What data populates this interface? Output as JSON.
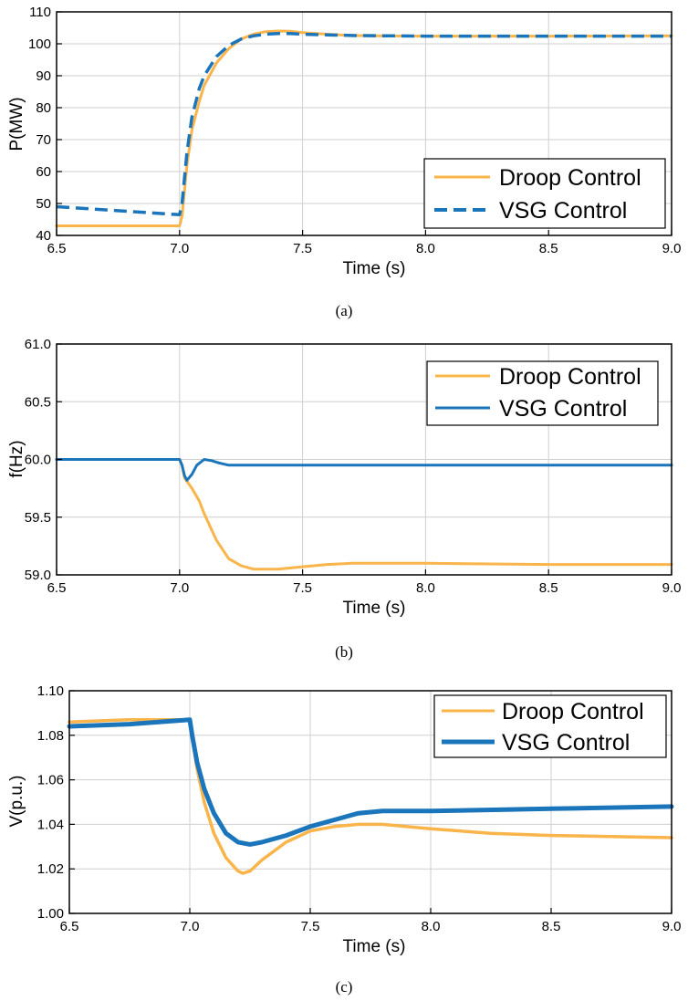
{
  "chart_data": [
    {
      "type": "line",
      "caption": "(a)",
      "xlabel": "Time (s)",
      "ylabel": "P(MW)",
      "xlim": [
        6.5,
        9.0
      ],
      "ylim": [
        40,
        110
      ],
      "xticks": [
        "6.5",
        "7.0",
        "7.5",
        "8.0",
        "8.5",
        "9.0"
      ],
      "yticks": [
        "40",
        "50",
        "60",
        "70",
        "80",
        "90",
        "100",
        "110"
      ],
      "grid": true,
      "legend_position": "bottom-right",
      "series": [
        {
          "name": "Droop Control",
          "color": "#F9B44A",
          "style": "solid",
          "x": [
            6.5,
            7.0,
            7.01,
            7.03,
            7.05,
            7.08,
            7.1,
            7.15,
            7.2,
            7.25,
            7.3,
            7.35,
            7.4,
            7.45,
            7.5,
            7.6,
            7.7,
            7.8,
            8.0,
            8.5,
            9.0
          ],
          "y": [
            43,
            43,
            46,
            62,
            73,
            82,
            87,
            94,
            98.5,
            101.5,
            103,
            103.8,
            104,
            103.9,
            103.5,
            103,
            102.6,
            102.5,
            102.4,
            102.4,
            102.5
          ]
        },
        {
          "name": "VSG Control",
          "color": "#1B75BB",
          "style": "dashed",
          "x": [
            6.5,
            7.0,
            7.01,
            7.03,
            7.05,
            7.08,
            7.1,
            7.15,
            7.2,
            7.25,
            7.3,
            7.35,
            7.4,
            7.45,
            7.5,
            7.6,
            7.7,
            8.0,
            8.5,
            9.0
          ],
          "y": [
            49,
            46.5,
            50,
            66,
            77,
            86,
            90,
            96,
            99.5,
            101.5,
            102.5,
            103,
            103.2,
            103.2,
            103,
            102.8,
            102.6,
            102.4,
            102.4,
            102.4
          ]
        }
      ]
    },
    {
      "type": "line",
      "caption": "(b)",
      "xlabel": "Time (s)",
      "ylabel": "f(Hz)",
      "xlim": [
        6.5,
        9.0
      ],
      "ylim": [
        59.0,
        61.0
      ],
      "xticks": [
        "6.5",
        "7.0",
        "7.5",
        "8.0",
        "8.5",
        "9.0"
      ],
      "yticks": [
        "59.0",
        "59.5",
        "60.0",
        "60.5",
        "61.0"
      ],
      "grid": true,
      "legend_position": "top-right",
      "series": [
        {
          "name": "Droop Control",
          "color": "#F9B44A",
          "style": "solid",
          "x": [
            6.5,
            7.0,
            7.01,
            7.02,
            7.05,
            7.08,
            7.1,
            7.15,
            7.2,
            7.25,
            7.3,
            7.35,
            7.4,
            7.5,
            7.6,
            7.7,
            7.8,
            8.0,
            8.5,
            9.0
          ],
          "y": [
            60.0,
            60.0,
            59.95,
            59.84,
            59.75,
            59.64,
            59.53,
            59.3,
            59.14,
            59.08,
            59.05,
            59.05,
            59.05,
            59.07,
            59.09,
            59.1,
            59.1,
            59.1,
            59.09,
            59.09
          ]
        },
        {
          "name": "VSG Control",
          "color": "#1B75BB",
          "style": "solid",
          "x": [
            6.5,
            7.0,
            7.01,
            7.02,
            7.03,
            7.05,
            7.07,
            7.1,
            7.13,
            7.16,
            7.2,
            7.25,
            7.3,
            7.5,
            8.0,
            8.5,
            9.0
          ],
          "y": [
            60.0,
            60.0,
            59.95,
            59.86,
            59.82,
            59.87,
            59.95,
            60.0,
            59.99,
            59.97,
            59.95,
            59.95,
            59.95,
            59.95,
            59.95,
            59.95,
            59.95
          ]
        }
      ]
    },
    {
      "type": "line",
      "caption": "(c)",
      "xlabel": "Time (s)",
      "ylabel": "V(p.u.)",
      "xlim": [
        6.5,
        9.0
      ],
      "ylim": [
        1.0,
        1.1
      ],
      "xticks": [
        "6.5",
        "7.0",
        "7.5",
        "8.0",
        "8.5",
        "9.0"
      ],
      "yticks": [
        "1.00",
        "1.02",
        "1.04",
        "1.06",
        "1.08",
        "1.10"
      ],
      "grid": true,
      "legend_position": "top-right",
      "series": [
        {
          "name": "Droop Control",
          "color": "#F9B44A",
          "style": "solid",
          "x": [
            6.5,
            6.75,
            7.0,
            7.01,
            7.03,
            7.06,
            7.1,
            7.15,
            7.2,
            7.22,
            7.25,
            7.3,
            7.4,
            7.5,
            7.6,
            7.7,
            7.75,
            7.8,
            8.0,
            8.25,
            8.5,
            9.0
          ],
          "y": [
            1.086,
            1.087,
            1.087,
            1.08,
            1.065,
            1.05,
            1.036,
            1.025,
            1.019,
            1.018,
            1.019,
            1.024,
            1.032,
            1.037,
            1.039,
            1.04,
            1.04,
            1.04,
            1.038,
            1.036,
            1.035,
            1.034
          ]
        },
        {
          "name": "VSG Control",
          "color": "#1B75BB",
          "style": "solid",
          "x": [
            6.5,
            6.75,
            7.0,
            7.01,
            7.03,
            7.06,
            7.1,
            7.15,
            7.2,
            7.25,
            7.3,
            7.4,
            7.5,
            7.6,
            7.7,
            7.8,
            8.0,
            8.5,
            9.0
          ],
          "y": [
            1.084,
            1.085,
            1.087,
            1.08,
            1.068,
            1.056,
            1.045,
            1.036,
            1.032,
            1.031,
            1.032,
            1.035,
            1.039,
            1.042,
            1.045,
            1.046,
            1.046,
            1.047,
            1.048
          ]
        }
      ]
    }
  ]
}
